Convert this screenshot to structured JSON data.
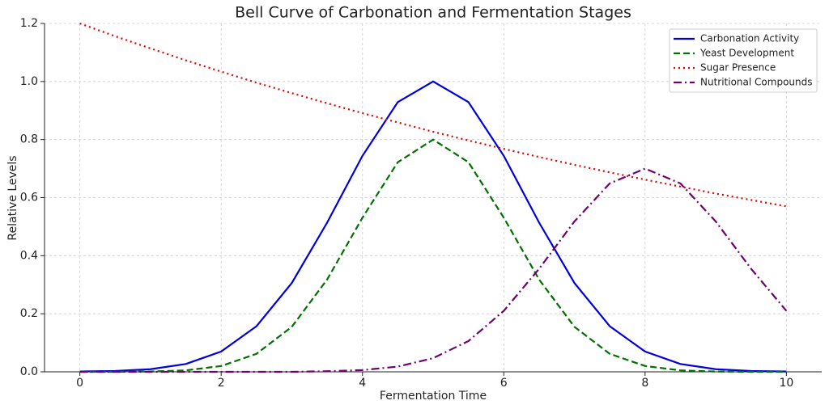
{
  "chart_data": {
    "type": "line",
    "title": "Bell Curve of Carbonation and Fermentation Stages",
    "xlabel": "Fermentation Time",
    "ylabel": "Relative Levels",
    "x": [
      0,
      0.5,
      1,
      1.5,
      2,
      2.5,
      3,
      3.5,
      4,
      4.5,
      5,
      5.5,
      6,
      6.5,
      7,
      7.5,
      8,
      8.5,
      9,
      9.5,
      10
    ],
    "series": [
      {
        "name": "Carbonation Activity",
        "color": "#0000dd",
        "dash": "solid",
        "values": [
          0.001,
          0.003,
          0.009,
          0.027,
          0.07,
          0.157,
          0.306,
          0.514,
          0.744,
          0.929,
          1,
          0.929,
          0.744,
          0.514,
          0.306,
          0.157,
          0.07,
          0.027,
          0.009,
          0.003,
          0.001
        ]
      },
      {
        "name": "Yeast Development",
        "color": "#007000",
        "dash": "dashed",
        "values": [
          0,
          0,
          0.001,
          0.005,
          0.02,
          0.062,
          0.155,
          0.318,
          0.531,
          0.722,
          0.8,
          0.722,
          0.531,
          0.318,
          0.155,
          0.062,
          0.02,
          0.005,
          0.001,
          0,
          0
        ]
      },
      {
        "name": "Sugar Presence",
        "color": "#e00000",
        "dash": "dotted",
        "values": [
          1.2,
          1.156,
          1.114,
          1.073,
          1.034,
          0.996,
          0.96,
          0.925,
          0.891,
          0.859,
          0.827,
          0.797,
          0.768,
          0.74,
          0.713,
          0.687,
          0.662,
          0.638,
          0.614,
          0.592,
          0.57
        ]
      },
      {
        "name": "Nutritional Compounds",
        "color": "#700070",
        "dash": "dashdot",
        "values": [
          0,
          0,
          0,
          0,
          0,
          0,
          0,
          0.002,
          0.006,
          0.018,
          0.047,
          0.106,
          0.21,
          0.355,
          0.518,
          0.649,
          0.7,
          0.649,
          0.518,
          0.355,
          0.21
        ]
      }
    ],
    "xlim": [
      -0.5,
      10.5
    ],
    "ylim": [
      0,
      1.2
    ],
    "xticks": [
      0,
      2,
      4,
      6,
      8,
      10
    ],
    "yticks": [
      {
        "value": 0,
        "label": "0.0"
      },
      {
        "value": 0.2,
        "label": "0.2"
      },
      {
        "value": 0.4,
        "label": "0.4"
      },
      {
        "value": 0.6,
        "label": "0.6"
      },
      {
        "value": 0.8,
        "label": "0.8"
      },
      {
        "value": 1,
        "label": "1.0"
      },
      {
        "value": 1.2,
        "label": "1.2"
      }
    ],
    "grid": true,
    "legend": "upper right"
  }
}
